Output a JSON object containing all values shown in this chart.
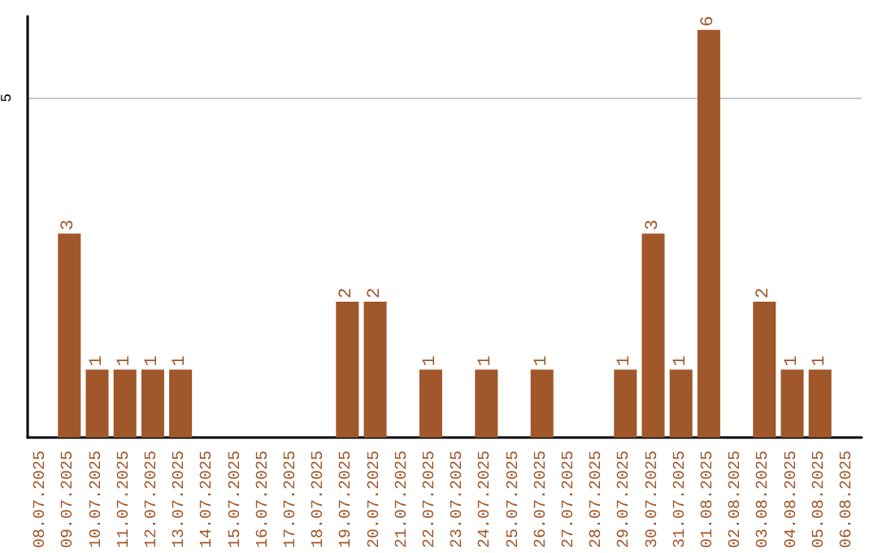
{
  "chart_data": {
    "type": "bar",
    "categories": [
      "08.07.2025",
      "09.07.2025",
      "10.07.2025",
      "11.07.2025",
      "12.07.2025",
      "13.07.2025",
      "14.07.2025",
      "15.07.2025",
      "16.07.2025",
      "17.07.2025",
      "18.07.2025",
      "19.07.2025",
      "20.07.2025",
      "21.07.2025",
      "22.07.2025",
      "23.07.2025",
      "24.07.2025",
      "25.07.2025",
      "26.07.2025",
      "27.07.2025",
      "28.07.2025",
      "29.07.2025",
      "30.07.2025",
      "31.07.2025",
      "01.08.2025",
      "02.08.2025",
      "03.08.2025",
      "04.08.2025",
      "05.08.2025",
      "06.08.2025"
    ],
    "values": [
      0,
      3,
      1,
      1,
      1,
      1,
      0,
      0,
      0,
      0,
      0,
      2,
      2,
      0,
      1,
      0,
      1,
      0,
      1,
      0,
      0,
      1,
      3,
      1,
      6,
      0,
      2,
      1,
      1,
      0
    ],
    "value_labels": [
      null,
      "3",
      "1",
      "1",
      "1",
      "1",
      null,
      null,
      null,
      null,
      null,
      "2",
      "2",
      null,
      "1",
      null,
      "1",
      null,
      "1",
      null,
      null,
      "1",
      "3",
      "1",
      "6",
      null,
      "2",
      "1",
      "1",
      null
    ],
    "color": "#a0572a",
    "ylim": [
      0,
      6.2
    ],
    "yticks": [
      5
    ],
    "grid": "y"
  }
}
